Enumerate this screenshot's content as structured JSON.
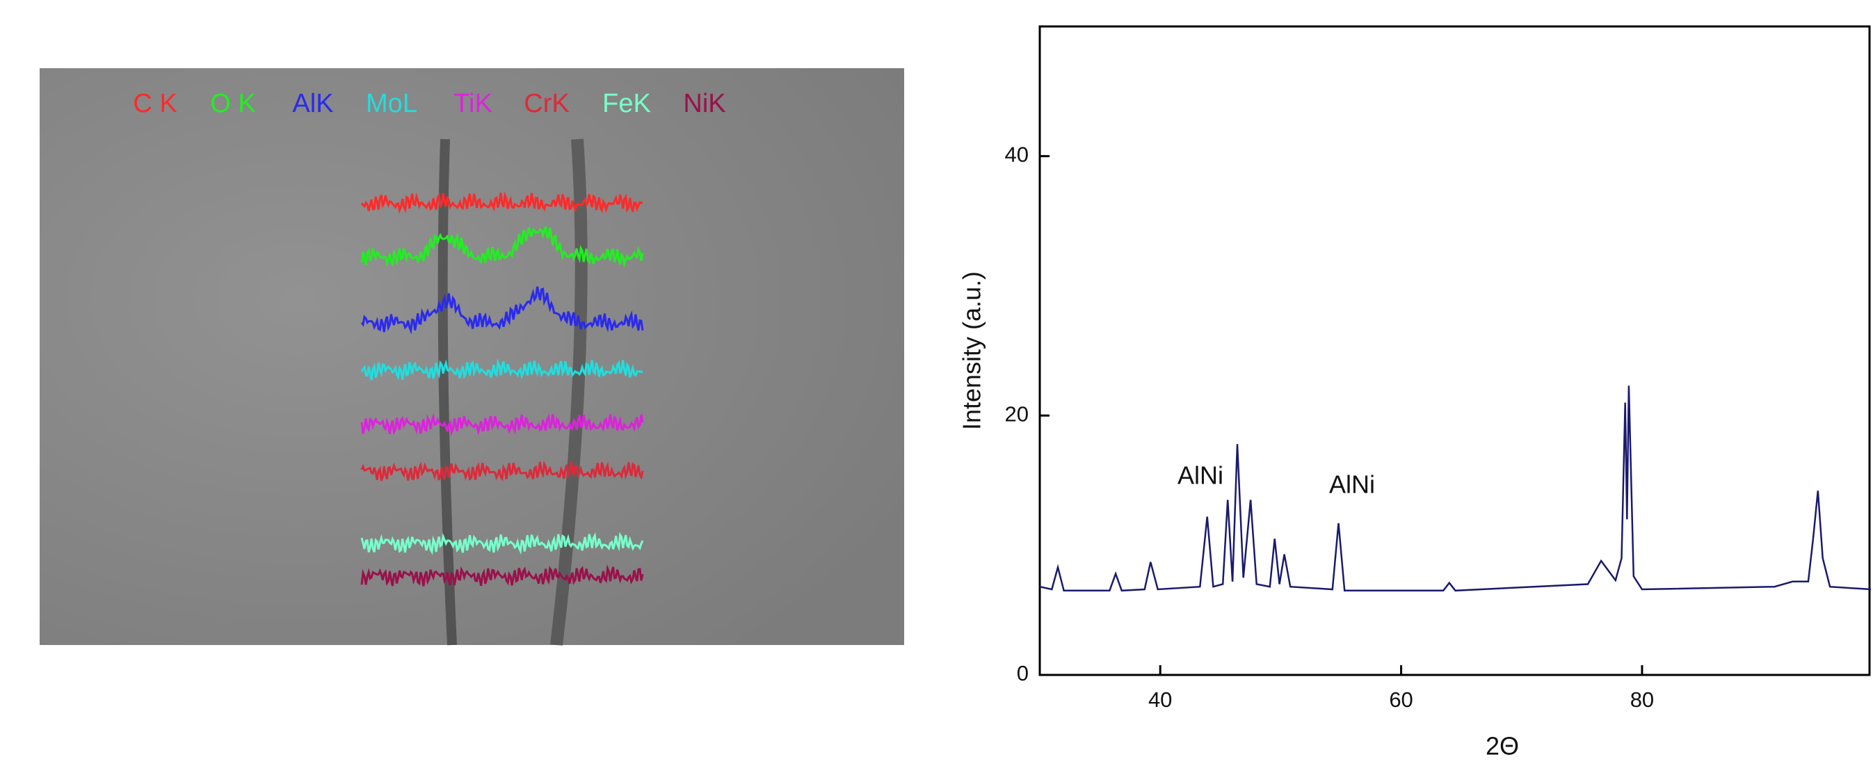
{
  "line_scan": {
    "labels": [
      {
        "text": "C K",
        "color": "#ff2a2a"
      },
      {
        "text": "O K",
        "color": "#22ee22"
      },
      {
        "text": "AlK",
        "color": "#2a2aee"
      },
      {
        "text": "MoL",
        "color": "#22dddd"
      },
      {
        "text": "TiK",
        "color": "#dd22dd"
      },
      {
        "text": "CrK",
        "color": "#dd2a3a"
      },
      {
        "text": "FeK",
        "color": "#77ffcc"
      },
      {
        "text": "NiK",
        "color": "#99114a"
      }
    ]
  },
  "chart_data": {
    "type": "line",
    "x_label": "2Θ",
    "y_label": "Intensity (a.u.)",
    "annotations": [
      "AlNi",
      "AlNi"
    ],
    "color": "#1a1a6e",
    "x": [
      30,
      31,
      31.5,
      32,
      35.8,
      36.3,
      36.8,
      38.7,
      39.2,
      39.8,
      43.3,
      43.9,
      44.4,
      45.2,
      45.6,
      46.0,
      46.4,
      46.9,
      47.5,
      48.0,
      49.1,
      49.5,
      49.9,
      50.3,
      50.8,
      54.3,
      54.8,
      55.3,
      63.5,
      64,
      64.5,
      75.5,
      76.6,
      77.8,
      78.3,
      78.6,
      78.75,
      78.9,
      79.3,
      80,
      91,
      92.5,
      93.8,
      94.2,
      94.6,
      95.0,
      95.6,
      99
    ],
    "values": [
      6.8,
      6.6,
      8.3,
      6.5,
      6.5,
      7.8,
      6.5,
      6.6,
      8.7,
      6.6,
      6.8,
      12.2,
      6.8,
      7.0,
      13.5,
      7.2,
      17.8,
      7.5,
      13.5,
      7.0,
      6.8,
      10.5,
      7.0,
      9.3,
      6.8,
      6.6,
      11.7,
      6.5,
      6.5,
      7.1,
      6.5,
      7.0,
      8.8,
      7.3,
      9.0,
      21.0,
      12.0,
      22.3,
      7.6,
      6.6,
      6.8,
      7.2,
      7.2,
      10.5,
      14.2,
      9.0,
      6.8,
      6.6
    ],
    "xlim": [
      30,
      99
    ],
    "ylim": [
      0,
      50
    ],
    "xticks": [
      40,
      60,
      80
    ],
    "yticks": [
      0,
      20,
      40
    ]
  }
}
